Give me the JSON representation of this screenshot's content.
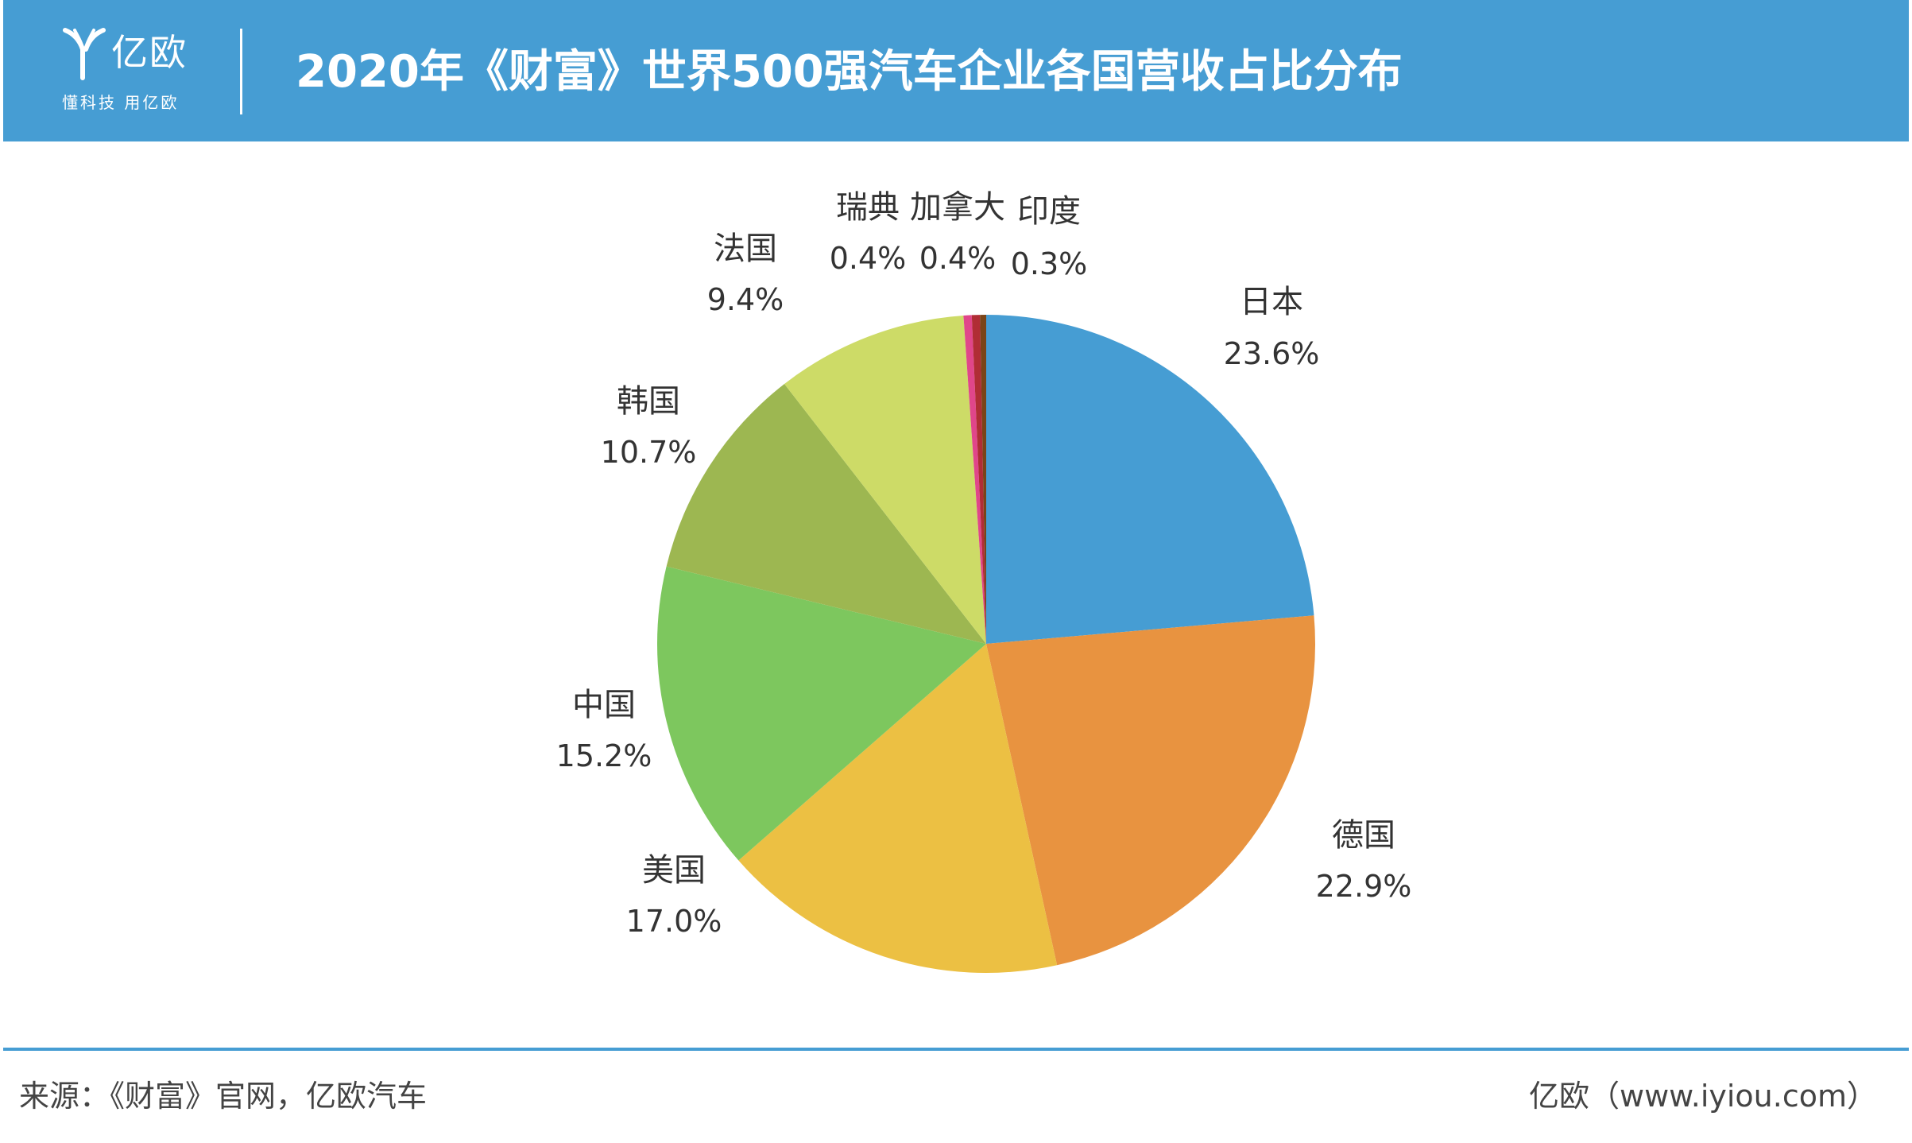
{
  "header": {
    "logo_text": "亿欧",
    "slogan": "懂科技 用亿欧",
    "title": "2020年《财富》世界500强汽车企业各国营收占比分布"
  },
  "chart_data": {
    "type": "pie",
    "title": "2020年《财富》世界500强汽车企业各国营收占比分布",
    "unit": "%",
    "start_angle": "12 o'clock",
    "direction": "clockwise",
    "slices": [
      {
        "label": "日本",
        "value": 23.6,
        "display": "23.6%",
        "color": "#469dd3"
      },
      {
        "label": "德国",
        "value": 22.9,
        "display": "22.9%",
        "color": "#e89340"
      },
      {
        "label": "美国",
        "value": 17.0,
        "display": "17.0%",
        "color": "#ecc043"
      },
      {
        "label": "中国",
        "value": 15.2,
        "display": "15.2%",
        "color": "#7dc75e"
      },
      {
        "label": "韩国",
        "value": 10.7,
        "display": "10.7%",
        "color": "#9db751"
      },
      {
        "label": "法国",
        "value": 9.4,
        "display": "9.4%",
        "color": "#cddb67"
      },
      {
        "label": "瑞典",
        "value": 0.4,
        "display": "0.4%",
        "color": "#e0468a"
      },
      {
        "label": "加拿大",
        "value": 0.4,
        "display": "0.4%",
        "color": "#b02d35"
      },
      {
        "label": "印度",
        "value": 0.3,
        "display": "0.3%",
        "color": "#7a4418"
      }
    ]
  },
  "footer": {
    "source": "来源：《财富》官网，亿欧汽车",
    "credit": "亿欧（www.iyiou.com）"
  }
}
